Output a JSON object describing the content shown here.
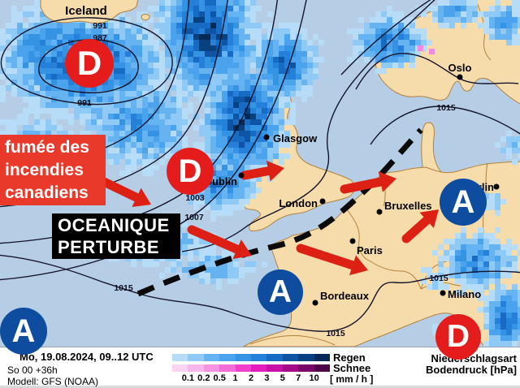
{
  "map": {
    "cities": [
      {
        "name": "Iceland"
      },
      {
        "name": "Oslo"
      },
      {
        "name": "Glasgow"
      },
      {
        "name": "Dublin"
      },
      {
        "name": "London"
      },
      {
        "name": "Bruxelles"
      },
      {
        "name": "Berlin"
      },
      {
        "name": "Paris"
      },
      {
        "name": "Bordeaux"
      },
      {
        "name": "Milano"
      }
    ],
    "isobar_labels": [
      {
        "value": "991"
      },
      {
        "value": "987"
      },
      {
        "value": "991"
      },
      {
        "value": "1003"
      },
      {
        "value": "1007"
      },
      {
        "value": "1015"
      },
      {
        "value": "1015"
      },
      {
        "value": "1015"
      },
      {
        "value": "1015"
      }
    ],
    "pressure_symbols": [
      {
        "letter": "D",
        "type": "low"
      },
      {
        "letter": "D",
        "type": "low"
      },
      {
        "letter": "D",
        "type": "low"
      },
      {
        "letter": "A",
        "type": "high"
      },
      {
        "letter": "A",
        "type": "high"
      },
      {
        "letter": "A",
        "type": "high"
      }
    ],
    "annotations": {
      "smoke_lines": [
        "fumée des",
        "incendies",
        "canadiens"
      ],
      "oceanic_lines": [
        "OCEANIQUE",
        "PERTURBE"
      ]
    }
  },
  "footer": {
    "datetime_line": "Mo, 19.08.2024, 09..12 UTC",
    "run_line": "So 00 +36h",
    "model_line": "Modell: GFS (NOAA)",
    "legend": {
      "rain_label": "Regen",
      "snow_label": "Schnee",
      "unit_label": "[ mm / h ]",
      "ticks": [
        "0.1",
        "0.2",
        "0.5",
        "1",
        "2",
        "3",
        "5",
        "7",
        "10"
      ],
      "rain_colors": [
        "#b7dcf8",
        "#8fc9f5",
        "#65b3f1",
        "#4aa3ec",
        "#3593e4",
        "#2480d8",
        "#176bc2",
        "#0e55a6",
        "#094080",
        "#062a56"
      ],
      "snow_colors": [
        "#f9d3f1",
        "#f7b5ea",
        "#f493e1",
        "#f26cd7",
        "#ef3fcb",
        "#e41cbe",
        "#c80fa6",
        "#a30989",
        "#790568",
        "#4e0247"
      ]
    },
    "type_label": "Niederschlagsart",
    "pressure_label": "Bodendruck [hPa]"
  },
  "colors": {
    "low_pressure_red": "#e51c1c",
    "high_pressure_blue": "#0d4c9e",
    "annotation_red": "#e8392b",
    "arrow_red": "#dd2014",
    "ocean": "#b6cde6",
    "land": "#f7dcab",
    "land_border": "#b3823c"
  }
}
